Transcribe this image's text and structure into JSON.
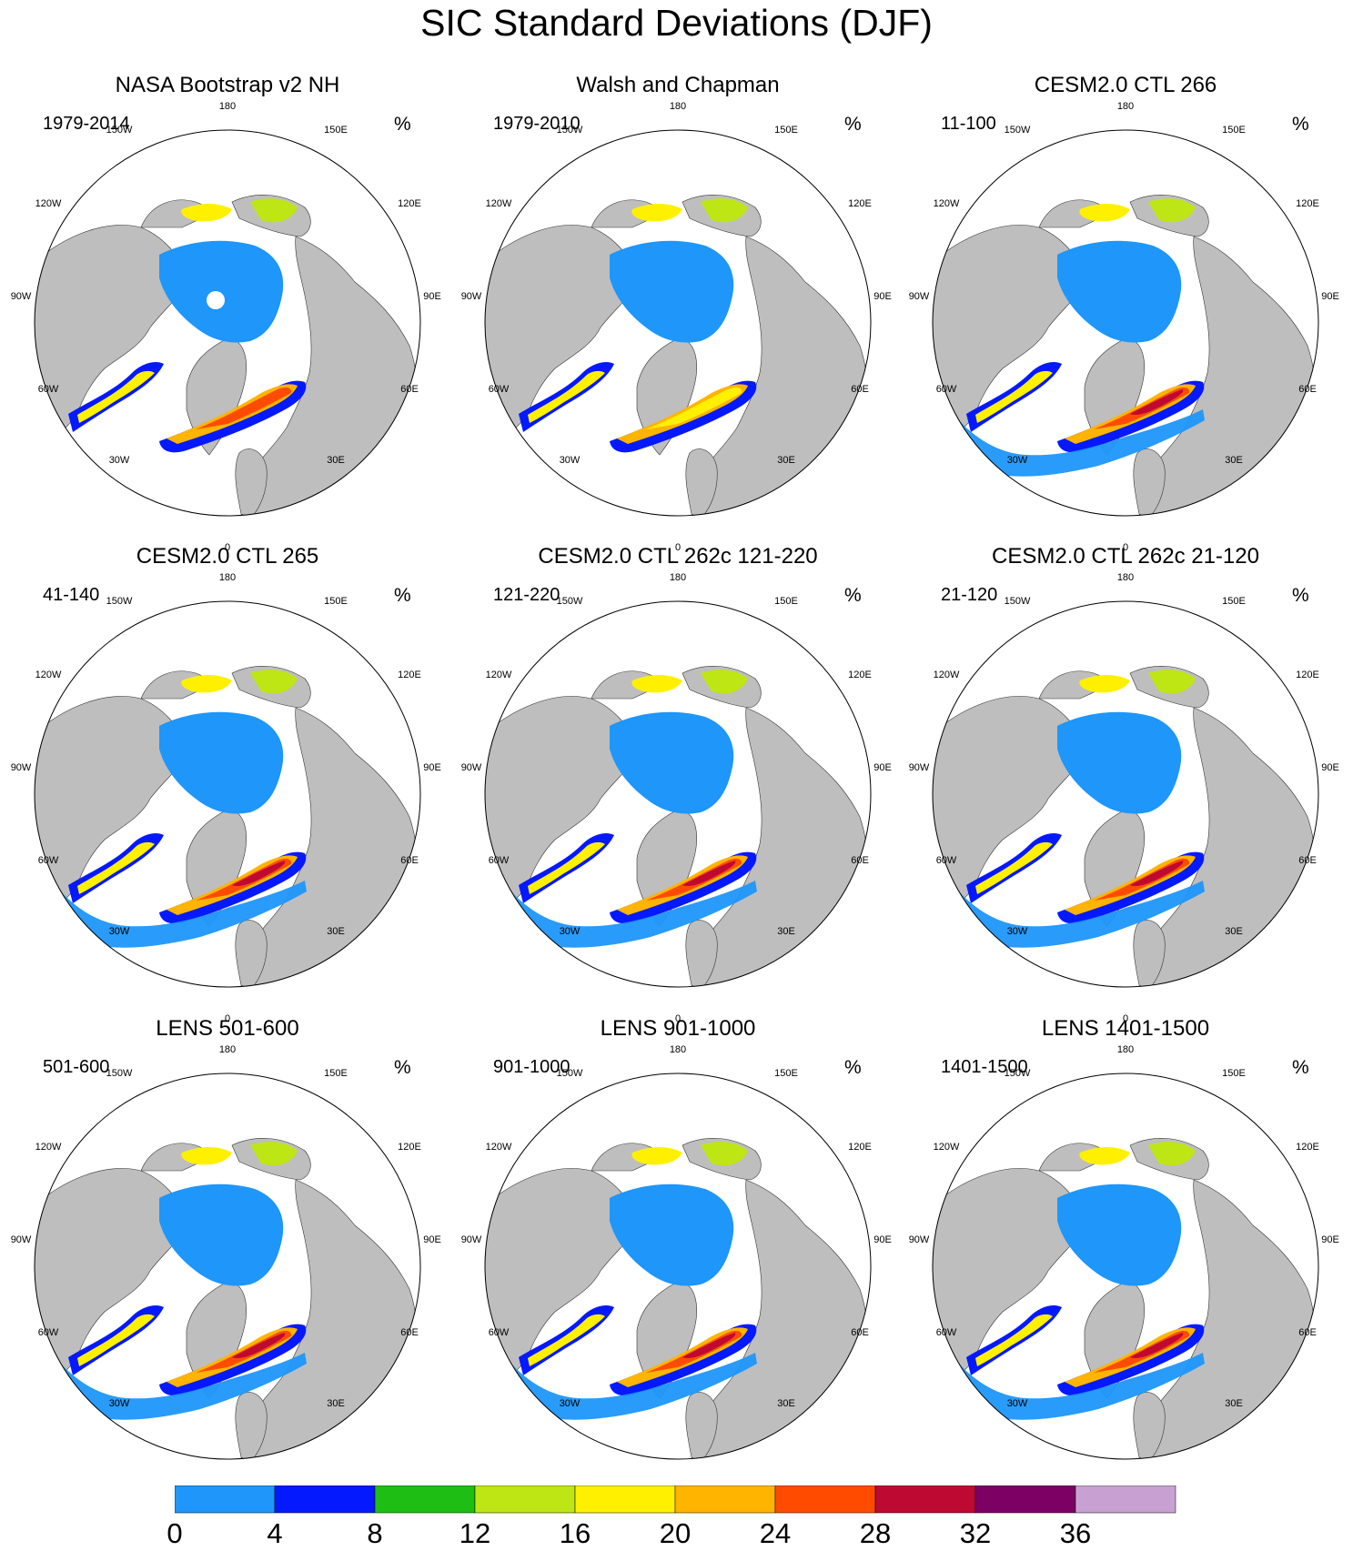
{
  "figure_title": "SIC Standard Deviations (DJF)",
  "unit": "%",
  "panels": [
    {
      "title": "NASA Bootstrap v2 NH",
      "period": "1979-2014",
      "style": "obs1"
    },
    {
      "title": "Walsh and Chapman",
      "period": "1979-2010",
      "style": "obs2"
    },
    {
      "title": "CESM2.0 CTL 266",
      "period": "11-100",
      "style": "model"
    },
    {
      "title": "CESM2.0 CTL 265",
      "period": "41-140",
      "style": "model"
    },
    {
      "title": "CESM2.0 CTL 262c 121-220",
      "period": "121-220",
      "style": "model"
    },
    {
      "title": "CESM2.0 CTL 262c 21-120",
      "period": "21-120",
      "style": "model"
    },
    {
      "title": "LENS 501-600",
      "period": "501-600",
      "style": "lens"
    },
    {
      "title": "LENS 901-1000",
      "period": "901-1000",
      "style": "lens"
    },
    {
      "title": "LENS 1401-1500",
      "period": "1401-1500",
      "style": "lens"
    }
  ],
  "longitude_labels": {
    "top": "180",
    "bottom": "0",
    "upper_left": "150W",
    "upper_right": "150E",
    "left_upper": "120W",
    "right_upper": "120E",
    "left_mid": "90W",
    "right_mid": "90E",
    "left_lower": "60W",
    "right_lower": "60E",
    "lower_left": "30W",
    "lower_right": "30E"
  },
  "colorbar": {
    "labels": [
      "0",
      "4",
      "8",
      "12",
      "16",
      "20",
      "24",
      "28",
      "32",
      "36"
    ],
    "colors": [
      "#1e96fa",
      "#0519ff",
      "#1ebe14",
      "#bee614",
      "#fff000",
      "#ffb400",
      "#ff4b00",
      "#be0a32",
      "#7d0064",
      "#c8a0d2"
    ]
  },
  "colors": {
    "land": "#bebebe",
    "ocean": "#ffffff"
  }
}
